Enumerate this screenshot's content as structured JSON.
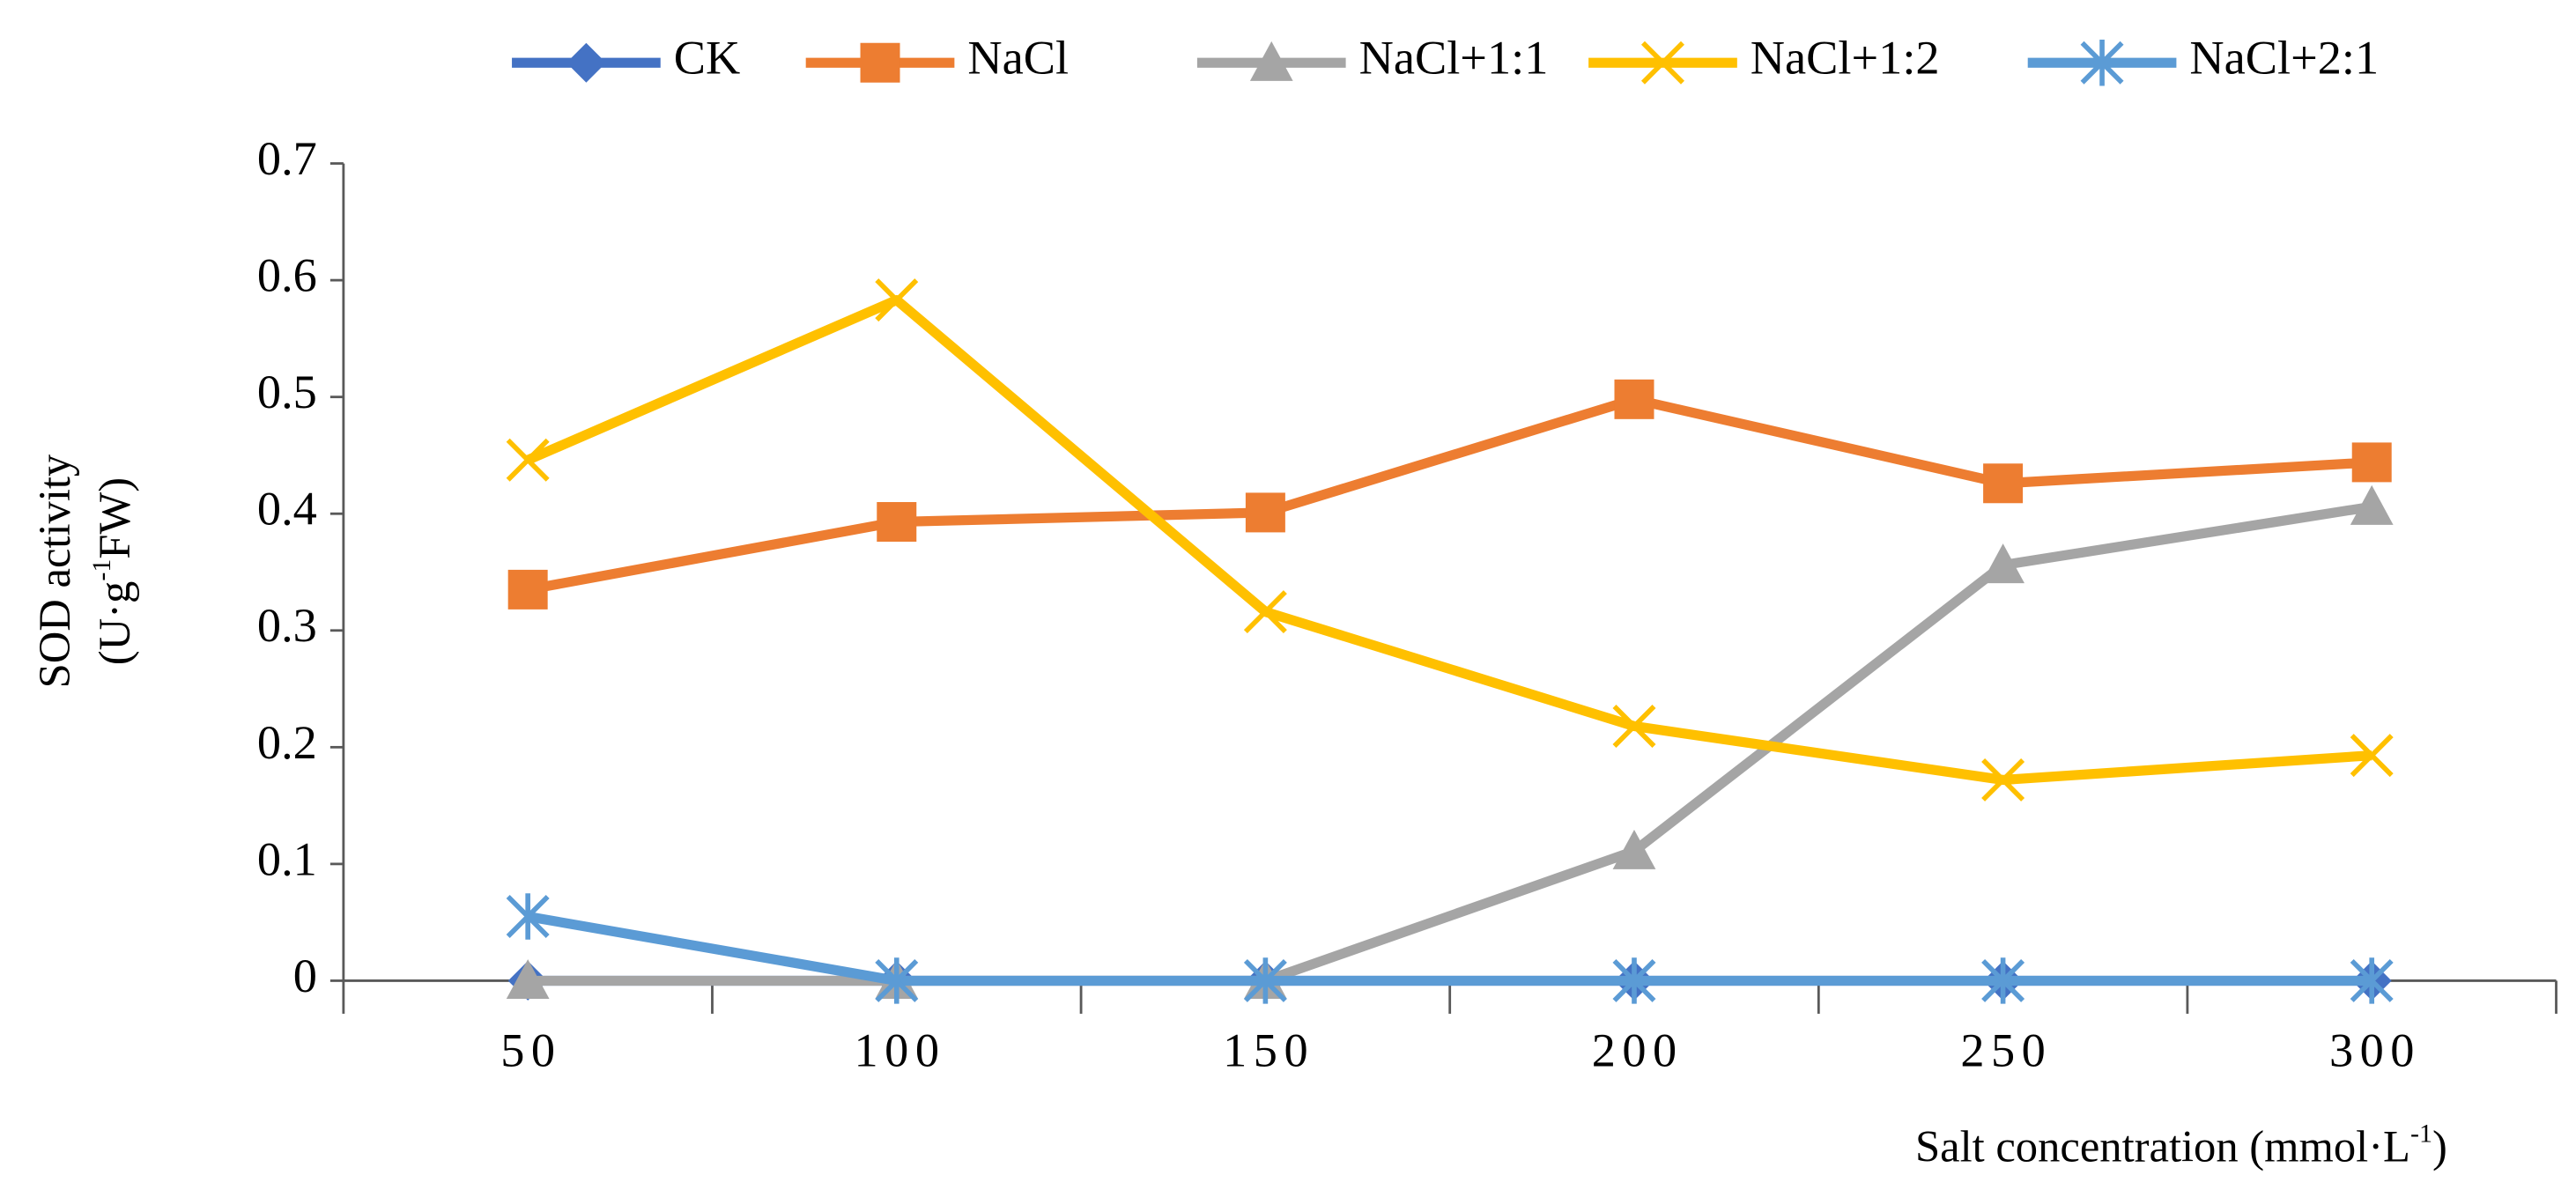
{
  "chart_data": {
    "type": "line",
    "categories": [
      "50",
      "100",
      "150",
      "200",
      "250",
      "300"
    ],
    "series": [
      {
        "name": "CK",
        "color": "#4472c4",
        "marker": "diamond",
        "values": [
          0,
          0,
          0,
          0,
          0,
          0
        ]
      },
      {
        "name": "NaCl",
        "color": "#ed7d31",
        "marker": "square",
        "values": [
          0.335,
          0.393,
          0.401,
          0.498,
          0.426,
          0.444
        ]
      },
      {
        "name": "NaCl+1:1",
        "color": "#a5a5a5",
        "marker": "triangle",
        "values": [
          0,
          0,
          0,
          0.111,
          0.356,
          0.406
        ]
      },
      {
        "name": "NaCl+1:2",
        "color": "#ffc000",
        "marker": "x",
        "values": [
          0.446,
          0.583,
          0.316,
          0.218,
          0.172,
          0.193
        ]
      },
      {
        "name": "NaCl+2:1",
        "color": "#5b9bd5",
        "marker": "star",
        "values": [
          0.055,
          0,
          0,
          0,
          0,
          0
        ]
      }
    ],
    "ylim": [
      0,
      0.7
    ],
    "yticks": [
      0,
      0.1,
      0.2,
      0.3,
      0.4,
      0.5,
      0.6,
      0.7
    ],
    "y_label": {
      "line1": "SOD activity",
      "line2_pre": "(U·g",
      "line2_sup": "-1",
      "line2_post": "FW)"
    },
    "x_label": {
      "pre": "Salt concentration (mmol·L",
      "sup": "-1",
      "post": ")"
    },
    "grid": false,
    "legend": "top"
  }
}
